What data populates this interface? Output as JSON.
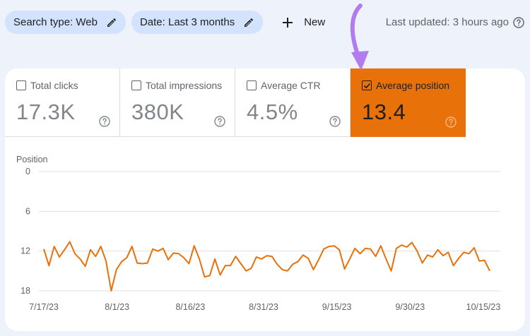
{
  "toolbar": {
    "search_type_label": "Search type: Web",
    "date_label": "Date: Last 3 months",
    "new_label": "New",
    "last_updated": "Last updated: 3 hours ago"
  },
  "metrics": [
    {
      "label": "Total clicks",
      "value": "17.3K",
      "checked": false
    },
    {
      "label": "Total impressions",
      "value": "380K",
      "checked": false
    },
    {
      "label": "Average CTR",
      "value": "4.5%",
      "checked": false
    },
    {
      "label": "Average position",
      "value": "13.4",
      "checked": true
    }
  ],
  "colors": {
    "active_metric": "#e8710a",
    "line": "#e8710a",
    "chip": "#d3e3fd",
    "arrow": "#b07cf0",
    "background": "#eef2fb"
  },
  "icons": [
    "pencil-icon",
    "plus-icon",
    "help-icon",
    "checkbox-icon",
    "arrow-annotation-icon"
  ],
  "chart_data": {
    "type": "line",
    "ylabel": "Position",
    "y_inverted": true,
    "ylim": [
      0,
      18
    ],
    "yticks": [
      0,
      6,
      12,
      18
    ],
    "xticks": [
      "7/17/23",
      "8/1/23",
      "8/16/23",
      "8/31/23",
      "9/15/23",
      "9/30/23",
      "10/15/23"
    ],
    "grid": true,
    "series": [
      {
        "values": [
          11.7,
          14.2,
          11.3,
          12.9,
          11.8,
          10.6,
          12.4,
          13.2,
          14.3,
          11.8,
          12.8,
          11.3,
          13.5,
          18.0,
          14.8,
          13.6,
          13.0,
          11.3,
          13.8,
          13.9,
          13.8,
          11.7,
          12.0,
          11.6,
          13.3,
          12.3,
          12.4,
          13.0,
          13.9,
          11.2,
          13.2,
          15.9,
          15.7,
          13.2,
          15.6,
          14.2,
          14.2,
          12.8,
          13.9,
          15.0,
          14.6,
          12.9,
          13.2,
          12.7,
          12.8,
          14.0,
          14.8,
          15.0,
          14.0,
          13.6,
          12.6,
          13.1,
          14.8,
          13.3,
          11.7,
          11.3,
          11.2,
          11.8,
          14.7,
          13.2,
          11.6,
          12.4,
          11.6,
          11.7,
          12.8,
          11.2,
          13.2,
          15.0,
          11.6,
          11.1,
          11.4,
          10.7,
          12.0,
          13.8,
          12.6,
          12.9,
          11.8,
          12.7,
          12.2,
          14.2,
          13.1,
          12.2,
          12.4,
          11.5,
          13.5,
          13.4,
          15.0
        ]
      }
    ]
  }
}
